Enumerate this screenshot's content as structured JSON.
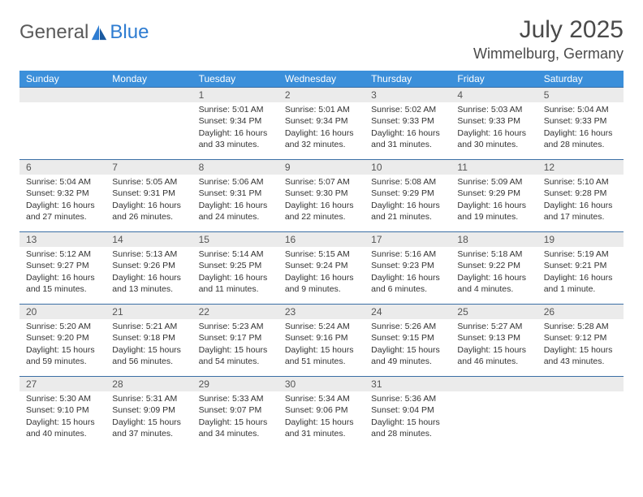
{
  "brand": {
    "part1": "General",
    "part2": "Blue"
  },
  "title": "July 2025",
  "location": "Wimmelburg, Germany",
  "colors": {
    "header_bg": "#3b8fda",
    "header_text": "#ffffff",
    "row_border": "#3b6fa5",
    "daynum_bg": "#ebebeb",
    "daynum_text": "#555555",
    "body_text": "#333333",
    "logo_gray": "#5a5a5a",
    "logo_blue": "#2e7cd1",
    "page_bg": "#ffffff"
  },
  "typography": {
    "month_title_pt": 30,
    "location_pt": 18,
    "dayheader_pt": 12,
    "daynum_pt": 12,
    "cell_pt": 10.5,
    "logo_pt": 24
  },
  "day_headers": [
    "Sunday",
    "Monday",
    "Tuesday",
    "Wednesday",
    "Thursday",
    "Friday",
    "Saturday"
  ],
  "weeks": [
    [
      {
        "empty": true
      },
      {
        "empty": true
      },
      {
        "n": "1",
        "sunrise": "5:01 AM",
        "sunset": "9:34 PM",
        "daylight": "16 hours and 33 minutes."
      },
      {
        "n": "2",
        "sunrise": "5:01 AM",
        "sunset": "9:34 PM",
        "daylight": "16 hours and 32 minutes."
      },
      {
        "n": "3",
        "sunrise": "5:02 AM",
        "sunset": "9:33 PM",
        "daylight": "16 hours and 31 minutes."
      },
      {
        "n": "4",
        "sunrise": "5:03 AM",
        "sunset": "9:33 PM",
        "daylight": "16 hours and 30 minutes."
      },
      {
        "n": "5",
        "sunrise": "5:04 AM",
        "sunset": "9:33 PM",
        "daylight": "16 hours and 28 minutes."
      }
    ],
    [
      {
        "n": "6",
        "sunrise": "5:04 AM",
        "sunset": "9:32 PM",
        "daylight": "16 hours and 27 minutes."
      },
      {
        "n": "7",
        "sunrise": "5:05 AM",
        "sunset": "9:31 PM",
        "daylight": "16 hours and 26 minutes."
      },
      {
        "n": "8",
        "sunrise": "5:06 AM",
        "sunset": "9:31 PM",
        "daylight": "16 hours and 24 minutes."
      },
      {
        "n": "9",
        "sunrise": "5:07 AM",
        "sunset": "9:30 PM",
        "daylight": "16 hours and 22 minutes."
      },
      {
        "n": "10",
        "sunrise": "5:08 AM",
        "sunset": "9:29 PM",
        "daylight": "16 hours and 21 minutes."
      },
      {
        "n": "11",
        "sunrise": "5:09 AM",
        "sunset": "9:29 PM",
        "daylight": "16 hours and 19 minutes."
      },
      {
        "n": "12",
        "sunrise": "5:10 AM",
        "sunset": "9:28 PM",
        "daylight": "16 hours and 17 minutes."
      }
    ],
    [
      {
        "n": "13",
        "sunrise": "5:12 AM",
        "sunset": "9:27 PM",
        "daylight": "16 hours and 15 minutes."
      },
      {
        "n": "14",
        "sunrise": "5:13 AM",
        "sunset": "9:26 PM",
        "daylight": "16 hours and 13 minutes."
      },
      {
        "n": "15",
        "sunrise": "5:14 AM",
        "sunset": "9:25 PM",
        "daylight": "16 hours and 11 minutes."
      },
      {
        "n": "16",
        "sunrise": "5:15 AM",
        "sunset": "9:24 PM",
        "daylight": "16 hours and 9 minutes."
      },
      {
        "n": "17",
        "sunrise": "5:16 AM",
        "sunset": "9:23 PM",
        "daylight": "16 hours and 6 minutes."
      },
      {
        "n": "18",
        "sunrise": "5:18 AM",
        "sunset": "9:22 PM",
        "daylight": "16 hours and 4 minutes."
      },
      {
        "n": "19",
        "sunrise": "5:19 AM",
        "sunset": "9:21 PM",
        "daylight": "16 hours and 1 minute."
      }
    ],
    [
      {
        "n": "20",
        "sunrise": "5:20 AM",
        "sunset": "9:20 PM",
        "daylight": "15 hours and 59 minutes."
      },
      {
        "n": "21",
        "sunrise": "5:21 AM",
        "sunset": "9:18 PM",
        "daylight": "15 hours and 56 minutes."
      },
      {
        "n": "22",
        "sunrise": "5:23 AM",
        "sunset": "9:17 PM",
        "daylight": "15 hours and 54 minutes."
      },
      {
        "n": "23",
        "sunrise": "5:24 AM",
        "sunset": "9:16 PM",
        "daylight": "15 hours and 51 minutes."
      },
      {
        "n": "24",
        "sunrise": "5:26 AM",
        "sunset": "9:15 PM",
        "daylight": "15 hours and 49 minutes."
      },
      {
        "n": "25",
        "sunrise": "5:27 AM",
        "sunset": "9:13 PM",
        "daylight": "15 hours and 46 minutes."
      },
      {
        "n": "26",
        "sunrise": "5:28 AM",
        "sunset": "9:12 PM",
        "daylight": "15 hours and 43 minutes."
      }
    ],
    [
      {
        "n": "27",
        "sunrise": "5:30 AM",
        "sunset": "9:10 PM",
        "daylight": "15 hours and 40 minutes."
      },
      {
        "n": "28",
        "sunrise": "5:31 AM",
        "sunset": "9:09 PM",
        "daylight": "15 hours and 37 minutes."
      },
      {
        "n": "29",
        "sunrise": "5:33 AM",
        "sunset": "9:07 PM",
        "daylight": "15 hours and 34 minutes."
      },
      {
        "n": "30",
        "sunrise": "5:34 AM",
        "sunset": "9:06 PM",
        "daylight": "15 hours and 31 minutes."
      },
      {
        "n": "31",
        "sunrise": "5:36 AM",
        "sunset": "9:04 PM",
        "daylight": "15 hours and 28 minutes."
      },
      {
        "empty": true
      },
      {
        "empty": true
      }
    ]
  ],
  "labels": {
    "sunrise_prefix": "Sunrise: ",
    "sunset_prefix": "Sunset: ",
    "daylight_prefix": "Daylight: "
  }
}
